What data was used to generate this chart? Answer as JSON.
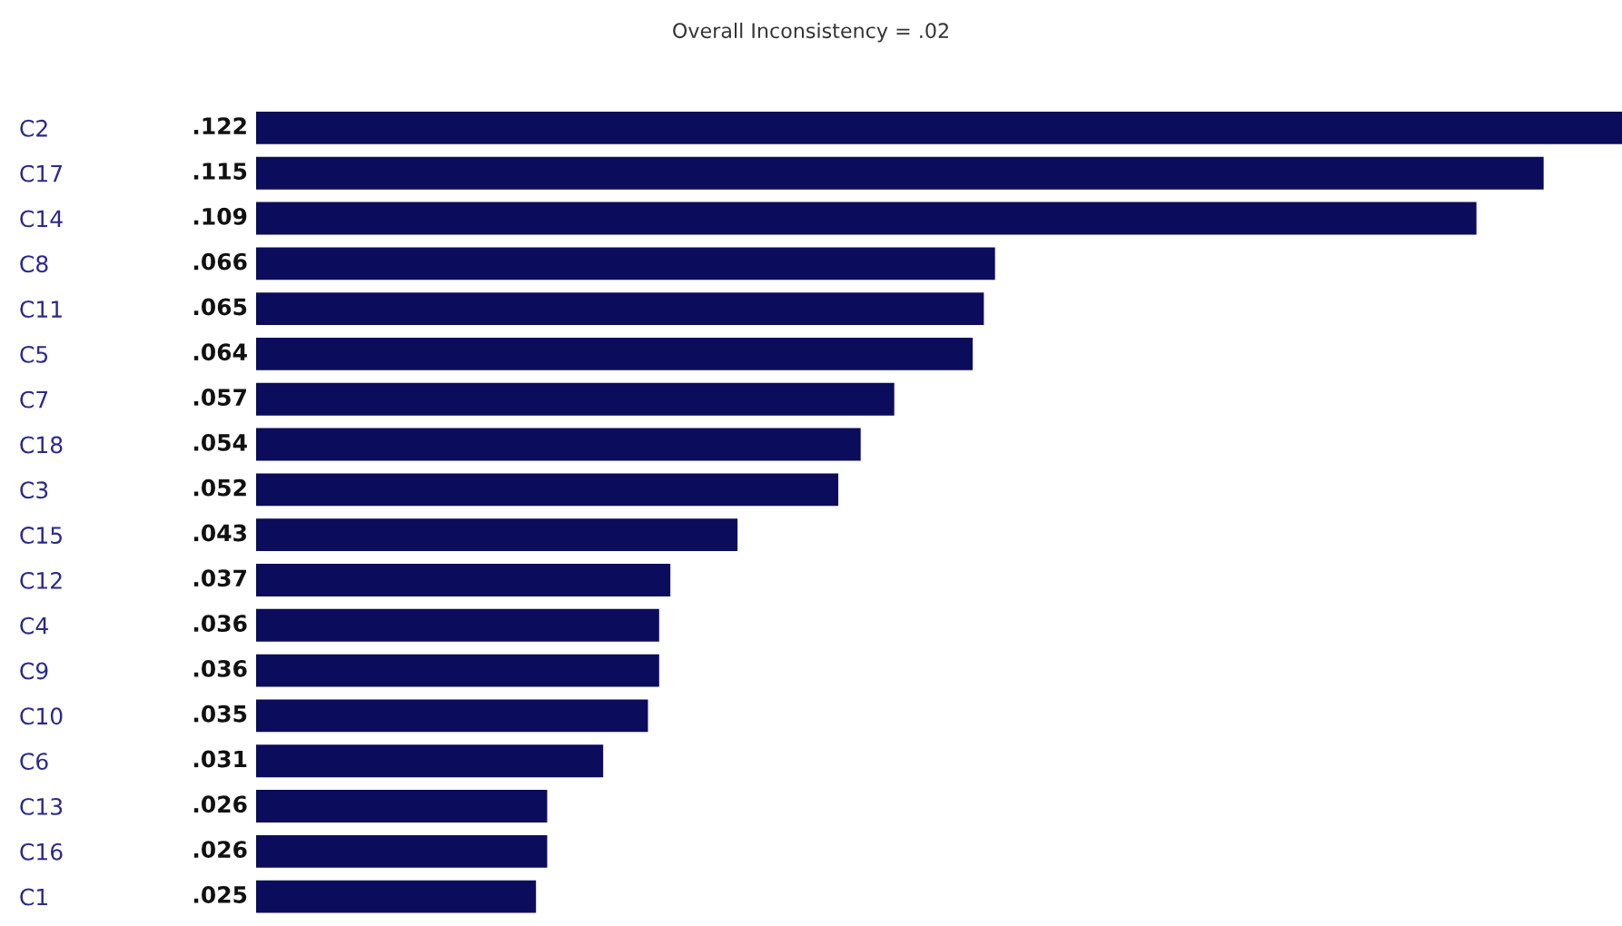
{
  "chart_data": {
    "type": "bar",
    "orientation": "horizontal",
    "title": "Overall Inconsistency = .02",
    "categories": [
      "C2",
      "C17",
      "C14",
      "C8",
      "C11",
      "C5",
      "C7",
      "C18",
      "C3",
      "C15",
      "C12",
      "C4",
      "C9",
      "C10",
      "C6",
      "C13",
      "C16",
      "C1"
    ],
    "values": [
      0.122,
      0.115,
      0.109,
      0.066,
      0.065,
      0.064,
      0.057,
      0.054,
      0.052,
      0.043,
      0.037,
      0.036,
      0.036,
      0.035,
      0.031,
      0.026,
      0.026,
      0.025
    ],
    "value_labels": [
      ".122",
      ".115",
      ".109",
      ".066",
      ".065",
      ".064",
      ".057",
      ".054",
      ".052",
      ".043",
      ".037",
      ".036",
      ".036",
      ".035",
      ".031",
      ".026",
      ".026",
      ".025"
    ],
    "color": "#0c0c5c",
    "grid": false,
    "legend": false
  }
}
